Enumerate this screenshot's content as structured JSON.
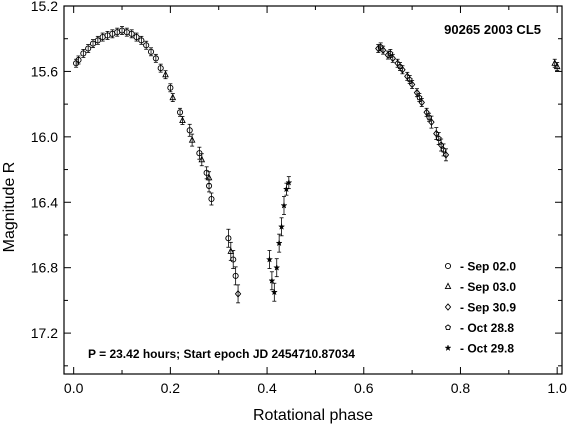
{
  "chart_data": {
    "type": "scatter",
    "title": "90265  2003 CL5",
    "xlabel": "Rotational phase",
    "ylabel": "Magnitude R",
    "xlim": [
      -0.02,
      1.01
    ],
    "ylim": [
      15.2,
      17.45
    ],
    "y_reversed": true,
    "grid": false,
    "legend_position": "bottom-right",
    "x_ticks": [
      "0.0",
      "0.2",
      "0.4",
      "0.6",
      "0.8",
      "1.0"
    ],
    "y_ticks": [
      "15.2",
      "15.6",
      "16.0",
      "16.4",
      "16.8",
      "17.2"
    ],
    "annotation": "P = 23.42 hours; Start epoch JD 2454710.87034",
    "series": [
      {
        "name": "- Sep 02.0",
        "marker": "circle",
        "points": [
          [
            0.005,
            15.55
          ],
          [
            0.01,
            15.53
          ],
          [
            0.02,
            15.49
          ],
          [
            0.03,
            15.46
          ],
          [
            0.04,
            15.43
          ],
          [
            0.05,
            15.41
          ],
          [
            0.06,
            15.39
          ],
          [
            0.07,
            15.38
          ],
          [
            0.08,
            15.37
          ],
          [
            0.09,
            15.36
          ],
          [
            0.1,
            15.35
          ],
          [
            0.11,
            15.36
          ],
          [
            0.12,
            15.37
          ],
          [
            0.13,
            15.39
          ],
          [
            0.14,
            15.41
          ],
          [
            0.15,
            15.44
          ],
          [
            0.16,
            15.48
          ],
          [
            0.17,
            15.52
          ],
          [
            0.18,
            15.58
          ],
          [
            0.2,
            15.7
          ],
          [
            0.22,
            15.85
          ],
          [
            0.24,
            15.96
          ],
          [
            0.26,
            16.1
          ],
          [
            0.275,
            16.22
          ],
          [
            0.28,
            16.3
          ],
          [
            0.285,
            16.38
          ],
          [
            0.32,
            16.62
          ],
          [
            0.33,
            16.75
          ],
          [
            0.335,
            16.85
          ]
        ]
      },
      {
        "name": "- Sep 03.0",
        "marker": "triangle",
        "points": [
          [
            0.19,
            15.62
          ],
          [
            0.205,
            15.76
          ],
          [
            0.225,
            15.9
          ],
          [
            0.245,
            16.02
          ],
          [
            0.265,
            16.14
          ],
          [
            0.28,
            16.25
          ],
          [
            0.325,
            16.7
          ],
          [
            0.995,
            15.55
          ],
          [
            1.0,
            15.57
          ]
        ]
      },
      {
        "name": "- Sep 30.9",
        "marker": "diamond",
        "points": [
          [
            0.63,
            15.46
          ],
          [
            0.64,
            15.47
          ],
          [
            0.65,
            15.5
          ],
          [
            0.66,
            15.52
          ],
          [
            0.67,
            15.55
          ],
          [
            0.68,
            15.59
          ],
          [
            0.69,
            15.63
          ],
          [
            0.7,
            15.68
          ],
          [
            0.71,
            15.73
          ],
          [
            0.72,
            15.79
          ],
          [
            0.73,
            15.85
          ],
          [
            0.74,
            15.91
          ],
          [
            0.75,
            15.98
          ],
          [
            0.76,
            16.05
          ],
          [
            0.77,
            16.11
          ],
          [
            0.34,
            16.96
          ]
        ]
      },
      {
        "name": "- Oct 28.8",
        "marker": "pentagon",
        "points": [
          [
            0.635,
            15.45
          ],
          [
            0.655,
            15.49
          ],
          [
            0.675,
            15.57
          ],
          [
            0.695,
            15.65
          ],
          [
            0.715,
            15.76
          ],
          [
            0.735,
            15.88
          ],
          [
            0.755,
            16.01
          ],
          [
            0.765,
            16.08
          ]
        ]
      },
      {
        "name": "- Oct 29.8",
        "marker": "star",
        "points": [
          [
            0.405,
            16.75
          ],
          [
            0.41,
            16.88
          ],
          [
            0.415,
            16.95
          ],
          [
            0.42,
            16.8
          ],
          [
            0.425,
            16.65
          ],
          [
            0.43,
            16.55
          ],
          [
            0.435,
            16.42
          ],
          [
            0.44,
            16.32
          ],
          [
            0.445,
            16.28
          ]
        ]
      }
    ]
  }
}
